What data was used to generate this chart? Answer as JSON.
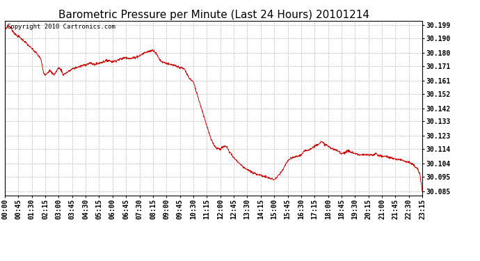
{
  "title": "Barometric Pressure per Minute (Last 24 Hours) 20101214",
  "copyright_text": "Copyright 2010 Cartronics.com",
  "line_color": "#cc0000",
  "background_color": "#ffffff",
  "grid_color": "#bbbbbb",
  "yticks": [
    30.085,
    30.095,
    30.104,
    30.114,
    30.123,
    30.133,
    30.142,
    30.152,
    30.161,
    30.171,
    30.18,
    30.19,
    30.199
  ],
  "ylim": [
    30.082,
    30.202
  ],
  "xtick_labels": [
    "00:00",
    "00:45",
    "01:30",
    "02:15",
    "03:00",
    "03:45",
    "04:30",
    "05:15",
    "06:00",
    "06:45",
    "07:30",
    "08:15",
    "09:00",
    "09:45",
    "10:30",
    "11:15",
    "12:00",
    "12:45",
    "13:30",
    "14:15",
    "15:00",
    "15:45",
    "16:30",
    "17:15",
    "18:00",
    "18:45",
    "19:30",
    "20:15",
    "21:00",
    "21:45",
    "22:30",
    "23:15"
  ],
  "title_fontsize": 11,
  "tick_fontsize": 7,
  "copyright_fontsize": 6.5,
  "control_points": [
    [
      0.0,
      30.196
    ],
    [
      0.2,
      30.199
    ],
    [
      0.35,
      30.197
    ],
    [
      0.5,
      30.194
    ],
    [
      0.65,
      30.192
    ],
    [
      0.8,
      30.191
    ],
    [
      1.0,
      30.189
    ],
    [
      1.25,
      30.186
    ],
    [
      1.5,
      30.183
    ],
    [
      1.75,
      30.18
    ],
    [
      2.0,
      30.176
    ],
    [
      2.15,
      30.167
    ],
    [
      2.25,
      30.165
    ],
    [
      2.5,
      30.168
    ],
    [
      2.65,
      30.166
    ],
    [
      2.75,
      30.165
    ],
    [
      2.85,
      30.167
    ],
    [
      3.0,
      30.17
    ],
    [
      3.15,
      30.168
    ],
    [
      3.25,
      30.165
    ],
    [
      3.5,
      30.167
    ],
    [
      3.65,
      30.168
    ],
    [
      3.75,
      30.169
    ],
    [
      4.0,
      30.17
    ],
    [
      4.25,
      30.171
    ],
    [
      4.5,
      30.172
    ],
    [
      4.75,
      30.173
    ],
    [
      5.0,
      30.172
    ],
    [
      5.25,
      30.173
    ],
    [
      5.5,
      30.174
    ],
    [
      5.75,
      30.175
    ],
    [
      6.0,
      30.174
    ],
    [
      6.25,
      30.175
    ],
    [
      6.5,
      30.176
    ],
    [
      6.75,
      30.177
    ],
    [
      7.0,
      30.176
    ],
    [
      7.25,
      30.177
    ],
    [
      7.5,
      30.178
    ],
    [
      7.75,
      30.18
    ],
    [
      8.0,
      30.181
    ],
    [
      8.25,
      30.182
    ],
    [
      8.35,
      30.181
    ],
    [
      8.5,
      30.178
    ],
    [
      8.65,
      30.175
    ],
    [
      8.75,
      30.174
    ],
    [
      9.0,
      30.173
    ],
    [
      9.15,
      30.172
    ],
    [
      9.25,
      30.172
    ],
    [
      9.5,
      30.171
    ],
    [
      9.75,
      30.17
    ],
    [
      10.0,
      30.169
    ],
    [
      10.25,
      30.163
    ],
    [
      10.5,
      30.16
    ],
    [
      10.6,
      30.156
    ],
    [
      10.75,
      30.15
    ],
    [
      11.0,
      30.14
    ],
    [
      11.25,
      30.13
    ],
    [
      11.5,
      30.12
    ],
    [
      11.75,
      30.115
    ],
    [
      12.0,
      30.114
    ],
    [
      12.1,
      30.115
    ],
    [
      12.25,
      30.116
    ],
    [
      12.4,
      30.115
    ],
    [
      12.5,
      30.112
    ],
    [
      12.65,
      30.11
    ],
    [
      12.75,
      30.108
    ],
    [
      13.0,
      30.105
    ],
    [
      13.25,
      30.102
    ],
    [
      13.5,
      30.1
    ],
    [
      13.75,
      30.098
    ],
    [
      14.0,
      30.097
    ],
    [
      14.25,
      30.096
    ],
    [
      14.5,
      30.095
    ],
    [
      14.75,
      30.094
    ],
    [
      15.0,
      30.093
    ],
    [
      15.1,
      30.094
    ],
    [
      15.25,
      30.096
    ],
    [
      15.5,
      30.1
    ],
    [
      15.65,
      30.104
    ],
    [
      15.75,
      30.106
    ],
    [
      16.0,
      30.108
    ],
    [
      16.25,
      30.109
    ],
    [
      16.5,
      30.11
    ],
    [
      16.65,
      30.112
    ],
    [
      16.75,
      30.113
    ],
    [
      17.0,
      30.114
    ],
    [
      17.25,
      30.116
    ],
    [
      17.5,
      30.118
    ],
    [
      17.6,
      30.119
    ],
    [
      17.75,
      30.118
    ],
    [
      18.0,
      30.116
    ],
    [
      18.25,
      30.114
    ],
    [
      18.5,
      30.113
    ],
    [
      18.65,
      30.112
    ],
    [
      18.75,
      30.111
    ],
    [
      19.0,
      30.112
    ],
    [
      19.15,
      30.113
    ],
    [
      19.25,
      30.112
    ],
    [
      19.5,
      30.111
    ],
    [
      19.75,
      30.11
    ],
    [
      20.0,
      30.11
    ],
    [
      20.25,
      30.11
    ],
    [
      20.5,
      30.11
    ],
    [
      20.65,
      30.111
    ],
    [
      20.75,
      30.11
    ],
    [
      21.0,
      30.109
    ],
    [
      21.25,
      30.109
    ],
    [
      21.5,
      30.108
    ],
    [
      21.75,
      30.107
    ],
    [
      22.0,
      30.107
    ],
    [
      22.25,
      30.106
    ],
    [
      22.5,
      30.105
    ],
    [
      22.65,
      30.104
    ],
    [
      22.75,
      30.103
    ],
    [
      23.0,
      30.1
    ],
    [
      23.1,
      30.097
    ],
    [
      23.25,
      30.085
    ]
  ]
}
